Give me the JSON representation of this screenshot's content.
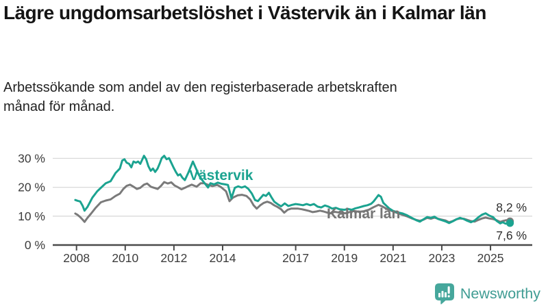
{
  "header": {
    "title": "Lägre ungdomsarbetslöshet i Västervik än i Kalmar län",
    "subtitle": "Arbetssökande som andel av den registerbaserade arbetskraften månad för månad."
  },
  "footer": {
    "brand": "Newsworthy"
  },
  "colors": {
    "vastervik": "#1BA390",
    "kalmar": "#7A7A7A",
    "kalmar_label": "#757575",
    "axis": "#4a4a4a",
    "grid": "#d9d9d9",
    "axis_text": "#3c3c3c",
    "logo_bubble": "#46A79C",
    "logo_text": "#3F9C93"
  },
  "chart_data": {
    "type": "line",
    "title": "Lägre ungdomsarbetslöshet i Västervik än i Kalmar län",
    "subtitle": "Arbetssökande som andel av den registerbaserade arbetskraften månad för månad.",
    "unit": "%",
    "xlabel": "",
    "ylabel": "",
    "grid": true,
    "legend_position": "inline-labels",
    "xlim": [
      2007.9,
      2026.6
    ],
    "ylim": [
      0,
      33
    ],
    "yticks": [
      {
        "value": 0,
        "label": "0 %"
      },
      {
        "value": 10,
        "label": "10 %"
      },
      {
        "value": 20,
        "label": "20 %"
      },
      {
        "value": 30,
        "label": "30 %"
      }
    ],
    "xticks": [
      {
        "value": 2008,
        "label": "2008"
      },
      {
        "value": 2010,
        "label": "2010"
      },
      {
        "value": 2012,
        "label": "2012"
      },
      {
        "value": 2014,
        "label": "2014"
      },
      {
        "value": 2017,
        "label": "2017"
      },
      {
        "value": 2019,
        "label": "2019"
      },
      {
        "value": 2021,
        "label": "2021"
      },
      {
        "value": 2023,
        "label": "2023"
      },
      {
        "value": 2025,
        "label": "2025"
      }
    ],
    "series": [
      {
        "name": "Kalmar län",
        "color": "#7A7A7A",
        "end_value": 8.2,
        "end_label": "8,2 %",
        "points": [
          [
            2007.95,
            10.9
          ],
          [
            2008.05,
            10.4
          ],
          [
            2008.15,
            9.7
          ],
          [
            2008.25,
            8.8
          ],
          [
            2008.33,
            8.0
          ],
          [
            2008.45,
            9.4
          ],
          [
            2008.6,
            10.9
          ],
          [
            2008.8,
            13.0
          ],
          [
            2009.0,
            14.8
          ],
          [
            2009.2,
            15.4
          ],
          [
            2009.4,
            15.8
          ],
          [
            2009.6,
            17.0
          ],
          [
            2009.78,
            17.8
          ],
          [
            2009.92,
            19.4
          ],
          [
            2010.06,
            20.5
          ],
          [
            2010.2,
            20.9
          ],
          [
            2010.34,
            20.2
          ],
          [
            2010.48,
            19.4
          ],
          [
            2010.62,
            19.8
          ],
          [
            2010.77,
            20.9
          ],
          [
            2010.9,
            21.3
          ],
          [
            2011.05,
            20.2
          ],
          [
            2011.19,
            19.8
          ],
          [
            2011.33,
            19.4
          ],
          [
            2011.47,
            20.5
          ],
          [
            2011.6,
            21.8
          ],
          [
            2011.75,
            21.3
          ],
          [
            2011.89,
            21.7
          ],
          [
            2012.03,
            20.6
          ],
          [
            2012.17,
            20.0
          ],
          [
            2012.31,
            19.3
          ],
          [
            2012.45,
            19.8
          ],
          [
            2012.54,
            20.2
          ],
          [
            2012.73,
            20.9
          ],
          [
            2012.93,
            20.2
          ],
          [
            2013.1,
            21.4
          ],
          [
            2013.24,
            21.4
          ],
          [
            2013.38,
            20.9
          ],
          [
            2013.58,
            20.4
          ],
          [
            2013.78,
            20.8
          ],
          [
            2013.94,
            20.0
          ],
          [
            2014.14,
            18.6
          ],
          [
            2014.28,
            15.2
          ],
          [
            2014.42,
            16.4
          ],
          [
            2014.62,
            17.2
          ],
          [
            2014.79,
            17.4
          ],
          [
            2014.98,
            17.0
          ],
          [
            2015.13,
            15.8
          ],
          [
            2015.27,
            13.8
          ],
          [
            2015.4,
            12.6
          ],
          [
            2015.55,
            13.8
          ],
          [
            2015.69,
            14.6
          ],
          [
            2015.83,
            15.0
          ],
          [
            2015.97,
            14.6
          ],
          [
            2016.11,
            13.8
          ],
          [
            2016.25,
            13.2
          ],
          [
            2016.4,
            12.4
          ],
          [
            2016.53,
            11.2
          ],
          [
            2016.67,
            12.2
          ],
          [
            2016.81,
            12.6
          ],
          [
            2016.95,
            12.6
          ],
          [
            2017.1,
            12.6
          ],
          [
            2017.25,
            12.4
          ],
          [
            2017.4,
            12.1
          ],
          [
            2017.55,
            11.8
          ],
          [
            2017.7,
            11.4
          ],
          [
            2017.85,
            11.6
          ],
          [
            2018.0,
            11.9
          ],
          [
            2018.15,
            11.6
          ],
          [
            2018.3,
            11.2
          ],
          [
            2018.45,
            11.0
          ],
          [
            2018.6,
            11.5
          ],
          [
            2018.75,
            11.3
          ],
          [
            2018.9,
            11.1
          ],
          [
            2019.05,
            11.0
          ],
          [
            2019.2,
            11.4
          ],
          [
            2019.4,
            11.8
          ],
          [
            2019.6,
            11.5
          ],
          [
            2019.8,
            11.7
          ],
          [
            2020.0,
            12.2
          ],
          [
            2020.2,
            13.1
          ],
          [
            2020.4,
            13.9
          ],
          [
            2020.55,
            13.4
          ],
          [
            2020.7,
            12.7
          ],
          [
            2020.85,
            12.1
          ],
          [
            2021.0,
            11.6
          ],
          [
            2021.2,
            11.0
          ],
          [
            2021.4,
            10.4
          ],
          [
            2021.55,
            10.0
          ],
          [
            2021.75,
            9.3
          ],
          [
            2021.95,
            8.7
          ],
          [
            2022.1,
            8.4
          ],
          [
            2022.25,
            8.8
          ],
          [
            2022.4,
            9.4
          ],
          [
            2022.55,
            9.1
          ],
          [
            2022.7,
            9.5
          ],
          [
            2022.85,
            9.1
          ],
          [
            2023.0,
            8.8
          ],
          [
            2023.15,
            8.5
          ],
          [
            2023.3,
            7.9
          ],
          [
            2023.45,
            8.3
          ],
          [
            2023.6,
            8.9
          ],
          [
            2023.75,
            9.2
          ],
          [
            2023.9,
            9.1
          ],
          [
            2024.05,
            8.7
          ],
          [
            2024.2,
            8.3
          ],
          [
            2024.35,
            8.1
          ],
          [
            2024.5,
            8.7
          ],
          [
            2024.65,
            9.2
          ],
          [
            2024.8,
            9.5
          ],
          [
            2024.95,
            9.2
          ],
          [
            2025.1,
            9.0
          ],
          [
            2025.25,
            8.6
          ],
          [
            2025.4,
            8.0
          ],
          [
            2025.5,
            8.3
          ],
          [
            2025.65,
            8.6
          ],
          [
            2025.8,
            8.2
          ]
        ]
      },
      {
        "name": "Västervik",
        "color": "#1BA390",
        "end_value": 7.6,
        "end_label": "7,6 %",
        "points": [
          [
            2007.95,
            15.6
          ],
          [
            2008.05,
            15.3
          ],
          [
            2008.15,
            15.1
          ],
          [
            2008.25,
            13.6
          ],
          [
            2008.33,
            11.9
          ],
          [
            2008.45,
            13.2
          ],
          [
            2008.55,
            14.8
          ],
          [
            2008.65,
            16.4
          ],
          [
            2008.85,
            18.6
          ],
          [
            2009.0,
            19.8
          ],
          [
            2009.2,
            21.4
          ],
          [
            2009.4,
            22.1
          ],
          [
            2009.6,
            24.9
          ],
          [
            2009.78,
            26.5
          ],
          [
            2009.88,
            29.3
          ],
          [
            2009.97,
            29.7
          ],
          [
            2010.06,
            28.5
          ],
          [
            2010.16,
            28.1
          ],
          [
            2010.25,
            26.9
          ],
          [
            2010.34,
            28.9
          ],
          [
            2010.44,
            28.5
          ],
          [
            2010.53,
            28.9
          ],
          [
            2010.62,
            28.1
          ],
          [
            2010.7,
            29.6
          ],
          [
            2010.77,
            30.9
          ],
          [
            2010.86,
            29.7
          ],
          [
            2010.95,
            27.3
          ],
          [
            2011.05,
            25.7
          ],
          [
            2011.14,
            26.5
          ],
          [
            2011.23,
            25.3
          ],
          [
            2011.33,
            26.5
          ],
          [
            2011.42,
            28.3
          ],
          [
            2011.5,
            30.1
          ],
          [
            2011.6,
            30.9
          ],
          [
            2011.7,
            29.7
          ],
          [
            2011.8,
            30.1
          ],
          [
            2011.89,
            28.5
          ],
          [
            2011.98,
            26.9
          ],
          [
            2012.08,
            25.3
          ],
          [
            2012.17,
            24.1
          ],
          [
            2012.26,
            24.5
          ],
          [
            2012.35,
            23.3
          ],
          [
            2012.45,
            22.5
          ],
          [
            2012.6,
            25.2
          ],
          [
            2012.78,
            28.9
          ],
          [
            2012.9,
            26.6
          ],
          [
            2013.03,
            24.2
          ],
          [
            2013.16,
            22.5
          ],
          [
            2013.3,
            21.0
          ],
          [
            2013.4,
            19.9
          ],
          [
            2013.5,
            21.4
          ],
          [
            2013.65,
            21.0
          ],
          [
            2013.8,
            21.6
          ],
          [
            2013.95,
            21.2
          ],
          [
            2014.1,
            21.0
          ],
          [
            2014.22,
            20.8
          ],
          [
            2014.36,
            16.2
          ],
          [
            2014.5,
            19.8
          ],
          [
            2014.64,
            20.3
          ],
          [
            2014.78,
            19.9
          ],
          [
            2014.92,
            20.3
          ],
          [
            2015.06,
            19.4
          ],
          [
            2015.2,
            17.8
          ],
          [
            2015.33,
            15.6
          ],
          [
            2015.45,
            15.2
          ],
          [
            2015.55,
            16.2
          ],
          [
            2015.67,
            17.4
          ],
          [
            2015.78,
            17.0
          ],
          [
            2015.9,
            18.1
          ],
          [
            2016.0,
            16.6
          ],
          [
            2016.12,
            15.0
          ],
          [
            2016.25,
            14.2
          ],
          [
            2016.4,
            13.4
          ],
          [
            2016.55,
            14.4
          ],
          [
            2016.7,
            13.5
          ],
          [
            2016.85,
            13.9
          ],
          [
            2017.0,
            14.2
          ],
          [
            2017.15,
            14.0
          ],
          [
            2017.3,
            13.8
          ],
          [
            2017.45,
            14.2
          ],
          [
            2017.6,
            13.8
          ],
          [
            2017.75,
            14.2
          ],
          [
            2017.9,
            13.3
          ],
          [
            2018.05,
            13.0
          ],
          [
            2018.2,
            13.7
          ],
          [
            2018.35,
            13.3
          ],
          [
            2018.5,
            12.6
          ],
          [
            2018.65,
            12.9
          ],
          [
            2018.8,
            12.4
          ],
          [
            2019.0,
            12.2
          ],
          [
            2019.15,
            12.5
          ],
          [
            2019.3,
            12.2
          ],
          [
            2019.45,
            12.7
          ],
          [
            2019.6,
            13.0
          ],
          [
            2019.8,
            13.5
          ],
          [
            2019.95,
            13.8
          ],
          [
            2020.1,
            14.3
          ],
          [
            2020.2,
            15.1
          ],
          [
            2020.3,
            16.2
          ],
          [
            2020.4,
            17.3
          ],
          [
            2020.5,
            16.7
          ],
          [
            2020.6,
            14.6
          ],
          [
            2020.7,
            13.8
          ],
          [
            2020.85,
            12.6
          ],
          [
            2021.0,
            11.8
          ],
          [
            2021.2,
            11.3
          ],
          [
            2021.4,
            10.9
          ],
          [
            2021.55,
            10.4
          ],
          [
            2021.75,
            9.5
          ],
          [
            2021.95,
            8.6
          ],
          [
            2022.1,
            8.1
          ],
          [
            2022.25,
            8.9
          ],
          [
            2022.4,
            9.7
          ],
          [
            2022.55,
            9.4
          ],
          [
            2022.7,
            9.8
          ],
          [
            2022.85,
            9.0
          ],
          [
            2023.0,
            8.6
          ],
          [
            2023.15,
            8.2
          ],
          [
            2023.3,
            7.6
          ],
          [
            2023.45,
            8.2
          ],
          [
            2023.6,
            8.9
          ],
          [
            2023.75,
            9.4
          ],
          [
            2023.9,
            9.0
          ],
          [
            2024.05,
            8.4
          ],
          [
            2024.2,
            7.9
          ],
          [
            2024.35,
            8.5
          ],
          [
            2024.5,
            9.6
          ],
          [
            2024.65,
            10.5
          ],
          [
            2024.8,
            11.0
          ],
          [
            2024.95,
            10.2
          ],
          [
            2025.1,
            9.7
          ],
          [
            2025.25,
            8.4
          ],
          [
            2025.4,
            7.5
          ],
          [
            2025.5,
            7.9
          ],
          [
            2025.62,
            7.4
          ],
          [
            2025.8,
            7.6
          ]
        ]
      }
    ]
  }
}
